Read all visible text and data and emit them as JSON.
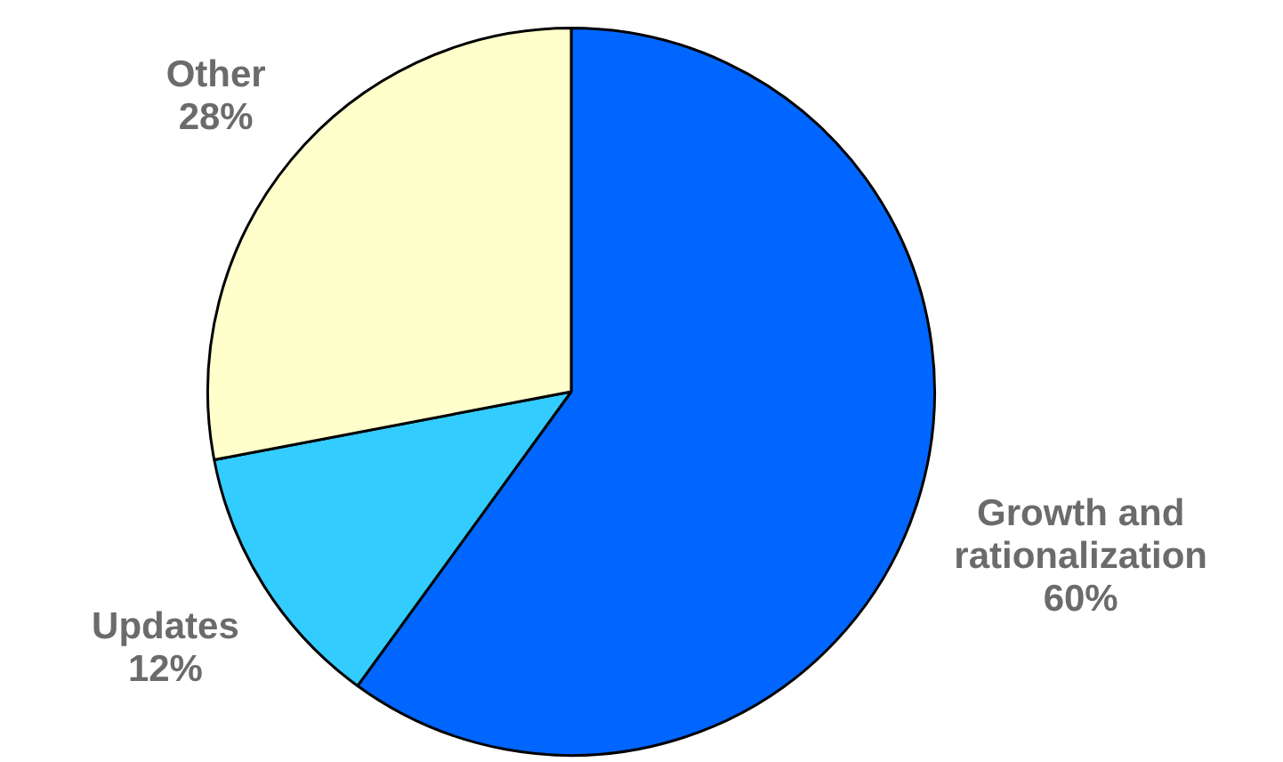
{
  "chart_data": {
    "type": "pie",
    "categories": [
      "Growth and rationalization",
      "Updates",
      "Other"
    ],
    "values": [
      60,
      12,
      28
    ],
    "value_labels": [
      "60%",
      "12%",
      "28%"
    ],
    "colors": [
      "#0066ff",
      "#33ccff",
      "#ffffcc"
    ],
    "legend": false
  }
}
